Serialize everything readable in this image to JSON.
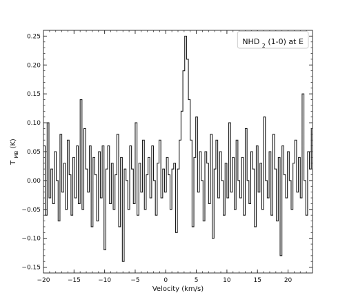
{
  "chart_data": {
    "type": "line",
    "style": "step",
    "xlabel": "Velocity (km/s)",
    "ylabel": "T_MB (K)",
    "ylabel_main": "T",
    "ylabel_sub": "MB",
    "ylabel_unit": " (K)",
    "xlim": [
      -20,
      24
    ],
    "ylim": [
      -0.16,
      0.26
    ],
    "xticks": [
      -20,
      -15,
      -10,
      -5,
      0,
      5,
      10,
      15,
      20
    ],
    "xtick_labels": [
      "−20",
      "−15",
      "−10",
      "−5",
      "0",
      "5",
      "10",
      "15",
      "20"
    ],
    "yticks": [
      -0.15,
      -0.1,
      -0.05,
      0.0,
      0.05,
      0.1,
      0.15,
      0.2,
      0.25
    ],
    "ytick_labels": [
      "−0.15",
      "−0.10",
      "−0.05",
      "0.00",
      "0.05",
      "0.10",
      "0.15",
      "0.20",
      "0.25"
    ],
    "grid": false,
    "legend": {
      "placement": "top-right",
      "prefix": "NHD",
      "subscript": "2",
      "suffix": " (1-0) at E"
    },
    "series": [
      {
        "color": "#1a1a1a",
        "x": [
          -20.0,
          -19.7,
          -19.4,
          -19.1,
          -18.8,
          -18.5,
          -18.2,
          -17.9,
          -17.6,
          -17.3,
          -17.0,
          -16.7,
          -16.4,
          -16.1,
          -15.8,
          -15.5,
          -15.2,
          -14.9,
          -14.6,
          -14.3,
          -14.0,
          -13.7,
          -13.4,
          -13.1,
          -12.8,
          -12.5,
          -12.2,
          -11.9,
          -11.6,
          -11.3,
          -11.0,
          -10.7,
          -10.4,
          -10.1,
          -9.8,
          -9.5,
          -9.2,
          -8.9,
          -8.6,
          -8.3,
          -8.0,
          -7.7,
          -7.4,
          -7.1,
          -6.8,
          -6.5,
          -6.2,
          -5.9,
          -5.6,
          -5.3,
          -5.0,
          -4.7,
          -4.4,
          -4.1,
          -3.8,
          -3.5,
          -3.2,
          -2.9,
          -2.6,
          -2.3,
          -2.0,
          -1.7,
          -1.4,
          -1.1,
          -0.8,
          -0.5,
          -0.2,
          0.1,
          0.4,
          0.7,
          1.0,
          1.3,
          1.6,
          1.9,
          2.2,
          2.5,
          2.8,
          3.1,
          3.4,
          3.7,
          4.0,
          4.3,
          4.6,
          4.9,
          5.2,
          5.5,
          5.8,
          6.1,
          6.4,
          6.7,
          7.0,
          7.3,
          7.6,
          7.9,
          8.2,
          8.5,
          8.8,
          9.1,
          9.4,
          9.7,
          10.0,
          10.3,
          10.6,
          10.9,
          11.2,
          11.5,
          11.8,
          12.1,
          12.4,
          12.7,
          13.0,
          13.3,
          13.6,
          13.9,
          14.2,
          14.5,
          14.8,
          15.1,
          15.4,
          15.7,
          16.0,
          16.3,
          16.6,
          16.9,
          17.2,
          17.5,
          17.8,
          18.1,
          18.4,
          18.7,
          19.0,
          19.3,
          19.6,
          19.9,
          20.2,
          20.5,
          20.8,
          21.1,
          21.4,
          21.7,
          22.0,
          22.3,
          22.6,
          22.9,
          23.2,
          23.5,
          23.8
        ],
        "values": [
          0.06,
          -0.06,
          0.1,
          -0.03,
          0.02,
          -0.04,
          0.05,
          0.0,
          -0.07,
          0.08,
          -0.02,
          0.03,
          -0.05,
          0.07,
          0.01,
          -0.06,
          0.04,
          -0.03,
          0.06,
          -0.04,
          0.14,
          -0.05,
          0.09,
          0.02,
          -0.02,
          0.06,
          -0.08,
          0.04,
          0.01,
          -0.07,
          0.05,
          -0.03,
          0.06,
          -0.12,
          0.02,
          0.06,
          -0.04,
          0.03,
          -0.05,
          0.01,
          0.08,
          -0.08,
          0.04,
          -0.14,
          0.02,
          0.0,
          -0.05,
          0.06,
          0.02,
          -0.04,
          0.1,
          -0.06,
          0.03,
          -0.02,
          0.07,
          -0.05,
          0.01,
          0.04,
          -0.03,
          0.06,
          0.0,
          -0.06,
          0.03,
          0.07,
          -0.03,
          0.02,
          -0.02,
          0.04,
          0.01,
          -0.05,
          0.02,
          0.03,
          -0.09,
          0.02,
          0.07,
          0.12,
          0.19,
          0.25,
          0.21,
          0.14,
          0.07,
          -0.08,
          0.04,
          0.11,
          -0.02,
          0.05,
          0.0,
          -0.07,
          0.05,
          0.03,
          -0.04,
          0.08,
          -0.1,
          0.02,
          0.07,
          -0.03,
          0.05,
          0.0,
          -0.06,
          0.03,
          -0.03,
          0.1,
          -0.02,
          0.04,
          -0.05,
          0.07,
          0.0,
          -0.03,
          0.04,
          -0.06,
          0.09,
          0.0,
          -0.04,
          0.05,
          0.02,
          -0.08,
          0.06,
          -0.02,
          0.03,
          -0.05,
          0.11,
          0.0,
          -0.03,
          0.05,
          -0.06,
          0.08,
          0.02,
          -0.07,
          0.04,
          -0.13,
          0.06,
          0.01,
          -0.03,
          0.05,
          0.0,
          -0.05,
          0.03,
          0.07,
          -0.02,
          0.04,
          -0.03,
          0.15,
          0.0,
          -0.06,
          0.05,
          0.02,
          0.09
        ]
      }
    ]
  }
}
